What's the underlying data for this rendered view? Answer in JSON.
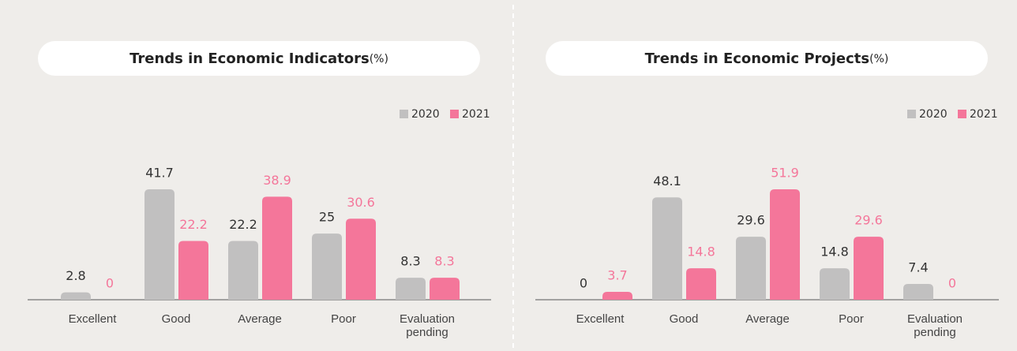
{
  "chart_data": [
    {
      "type": "bar",
      "title": "Trends in Economic Indicators",
      "unit": "(%)",
      "categories": [
        "Excellent",
        "Good",
        "Average",
        "Poor",
        "Evaluation pending"
      ],
      "series": [
        {
          "name": "2020",
          "color": "#c1c0c0",
          "values": [
            2.8,
            41.7,
            22.2,
            25,
            8.3
          ]
        },
        {
          "name": "2021",
          "color": "#f4769a",
          "values": [
            0,
            22.2,
            38.9,
            30.6,
            8.3
          ]
        }
      ]
    },
    {
      "type": "bar",
      "title": "Trends in Economic Projects",
      "unit": "(%)",
      "categories": [
        "Excellent",
        "Good",
        "Average",
        "Poor",
        "Evaluation pending"
      ],
      "series": [
        {
          "name": "2020",
          "color": "#c1c0c0",
          "values": [
            0,
            48.1,
            29.6,
            14.8,
            7.4
          ]
        },
        {
          "name": "2021",
          "color": "#f4769a",
          "values": [
            3.7,
            14.8,
            51.9,
            29.6,
            0
          ]
        }
      ]
    }
  ]
}
